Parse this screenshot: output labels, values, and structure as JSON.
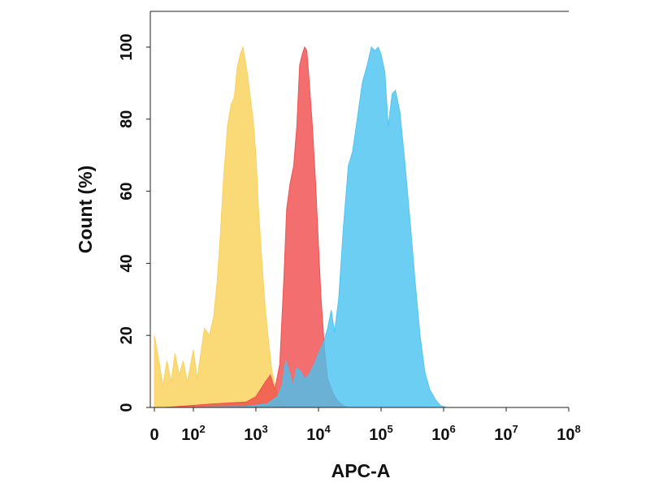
{
  "chart_data": {
    "type": "area",
    "title": "",
    "xlabel": "APC-A",
    "ylabel": "Count  (%)",
    "x_scale": "biexponential-log",
    "xlim": [
      0,
      100000000
    ],
    "ylim": [
      0,
      100
    ],
    "grid": false,
    "legend": "none",
    "x_ticks": [
      {
        "value": 0,
        "base": "0",
        "exp": ""
      },
      {
        "value": 100,
        "base": "10",
        "exp": "2"
      },
      {
        "value": 1000,
        "base": "10",
        "exp": "3"
      },
      {
        "value": 10000,
        "base": "10",
        "exp": "4"
      },
      {
        "value": 100000,
        "base": "10",
        "exp": "5"
      },
      {
        "value": 1000000,
        "base": "10",
        "exp": "6"
      },
      {
        "value": 10000000,
        "base": "10",
        "exp": "7"
      },
      {
        "value": 100000000,
        "base": "10",
        "exp": "8"
      }
    ],
    "y_ticks": [
      "0",
      "20",
      "40",
      "60",
      "80",
      "100"
    ],
    "series": [
      {
        "color": "#f9cf55",
        "points": [
          [
            0,
            20
          ],
          [
            15,
            13
          ],
          [
            25,
            6
          ],
          [
            35,
            13
          ],
          [
            45,
            7
          ],
          [
            55,
            15
          ],
          [
            65,
            9
          ],
          [
            75,
            13
          ],
          [
            85,
            7
          ],
          [
            100,
            16
          ],
          [
            115,
            8
          ],
          [
            150,
            22
          ],
          [
            180,
            20
          ],
          [
            210,
            25
          ],
          [
            240,
            35
          ],
          [
            270,
            48
          ],
          [
            300,
            62
          ],
          [
            350,
            78
          ],
          [
            400,
            84
          ],
          [
            450,
            86
          ],
          [
            500,
            94
          ],
          [
            560,
            98
          ],
          [
            620,
            100
          ],
          [
            680,
            96
          ],
          [
            740,
            92
          ],
          [
            800,
            87
          ],
          [
            900,
            80
          ],
          [
            1000,
            70
          ],
          [
            1100,
            55
          ],
          [
            1250,
            40
          ],
          [
            1400,
            28
          ],
          [
            1600,
            18
          ],
          [
            1800,
            10
          ],
          [
            2100,
            5
          ],
          [
            2500,
            2
          ],
          [
            3000,
            0.5
          ],
          [
            3500,
            0
          ]
        ]
      },
      {
        "color": "#f04a4a",
        "points": [
          [
            30,
            0
          ],
          [
            200,
            1
          ],
          [
            700,
            1.5
          ],
          [
            1000,
            3
          ],
          [
            1400,
            7
          ],
          [
            1700,
            9
          ],
          [
            2000,
            5
          ],
          [
            2400,
            12
          ],
          [
            2800,
            36
          ],
          [
            3100,
            55
          ],
          [
            3500,
            62
          ],
          [
            4000,
            67
          ],
          [
            4500,
            78
          ],
          [
            5000,
            95
          ],
          [
            5500,
            98
          ],
          [
            6000,
            100
          ],
          [
            6500,
            99
          ],
          [
            7000,
            92
          ],
          [
            8000,
            78
          ],
          [
            9000,
            62
          ],
          [
            10000,
            45
          ],
          [
            11000,
            30
          ],
          [
            12500,
            16
          ],
          [
            14000,
            8
          ],
          [
            17000,
            4
          ],
          [
            20000,
            2
          ],
          [
            25000,
            0.5
          ],
          [
            30000,
            0
          ]
        ]
      },
      {
        "color": "#49c2f0",
        "points": [
          [
            0,
            0
          ],
          [
            700,
            0.3
          ],
          [
            1500,
            1
          ],
          [
            2200,
            3
          ],
          [
            2600,
            6
          ],
          [
            3000,
            13
          ],
          [
            3400,
            10
          ],
          [
            3900,
            6
          ],
          [
            4500,
            11
          ],
          [
            5200,
            10
          ],
          [
            6000,
            8
          ],
          [
            7000,
            9
          ],
          [
            8500,
            12
          ],
          [
            10000,
            15
          ],
          [
            12000,
            18
          ],
          [
            14000,
            22
          ],
          [
            16000,
            27
          ],
          [
            18000,
            21
          ],
          [
            21000,
            30
          ],
          [
            25000,
            50
          ],
          [
            30000,
            67
          ],
          [
            35000,
            71
          ],
          [
            40000,
            78
          ],
          [
            50000,
            90
          ],
          [
            60000,
            95
          ],
          [
            70000,
            100
          ],
          [
            80000,
            99
          ],
          [
            90000,
            100
          ],
          [
            100000,
            98
          ],
          [
            115000,
            93
          ],
          [
            130000,
            78
          ],
          [
            150000,
            87
          ],
          [
            170000,
            88
          ],
          [
            200000,
            82
          ],
          [
            240000,
            68
          ],
          [
            290000,
            52
          ],
          [
            350000,
            35
          ],
          [
            420000,
            20
          ],
          [
            500000,
            10
          ],
          [
            600000,
            5
          ],
          [
            750000,
            2
          ],
          [
            900000,
            0.5
          ],
          [
            1100000,
            0
          ]
        ]
      }
    ]
  }
}
